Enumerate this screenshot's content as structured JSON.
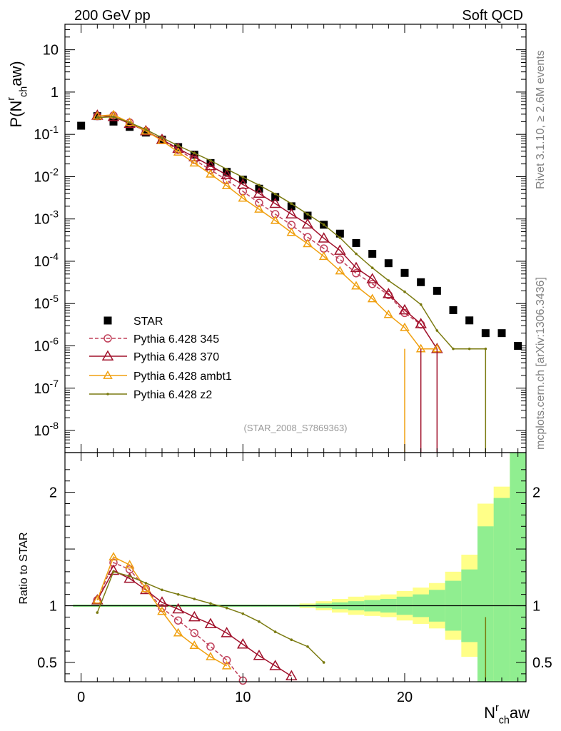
{
  "header": {
    "left": "200 GeV pp",
    "right": "Soft QCD"
  },
  "side_labels": {
    "rivet": "Rivet 3.1.10, ≥ 2.6M events",
    "mcplots": "mcplots.cern.ch [arXiv:1306.3436]"
  },
  "analysis_ref": "(STAR_2008_S7869363)",
  "colors": {
    "STAR": "#000000",
    "p345": "#c0405a",
    "p370": "#a0102a",
    "ambt1": "#f0a010",
    "z2": "#7a7a10",
    "band_inner": "#90ee90",
    "band_outer": "#ffff88"
  },
  "chart_data": [
    {
      "type": "scatter",
      "ylabel": "P(N^r_ch aw)",
      "xlabel": "N^r_ch aw",
      "xlim": [
        -1,
        27.5
      ],
      "ylim": [
        3e-09,
        40
      ],
      "yscale": "log",
      "xticks": [
        "0",
        "10",
        "20"
      ],
      "yticks": [
        "10",
        "1",
        "10^-1",
        "10^-2",
        "10^-3",
        "10^-4",
        "10^-5",
        "10^-6",
        "10^-7",
        "10^-8"
      ],
      "series": [
        {
          "name": "STAR",
          "marker": "filled-square",
          "x": [
            0,
            1,
            2,
            3,
            4,
            5,
            6,
            7,
            8,
            9,
            10,
            11,
            12,
            13,
            14,
            15,
            16,
            17,
            18,
            19,
            20,
            21,
            22,
            23,
            24,
            25,
            26,
            27
          ],
          "y": [
            0.16,
            0.27,
            0.2,
            0.15,
            0.11,
            0.075,
            0.05,
            0.033,
            0.021,
            0.013,
            0.0085,
            0.0052,
            0.0033,
            0.002,
            0.0012,
            0.00073,
            0.00045,
            0.00027,
            0.00015,
            9e-05,
            5.3e-05,
            3.2e-05,
            2e-05,
            7e-06,
            4e-06,
            2e-06,
            2e-06,
            1e-06
          ]
        },
        {
          "name": "Pythia 6.428 345",
          "marker": "open-circle",
          "line": "dashed",
          "x": [
            1,
            2,
            3,
            4,
            5,
            6,
            7,
            8,
            9,
            10,
            11,
            12,
            13,
            14,
            15,
            16,
            17,
            18,
            19,
            20,
            21
          ],
          "y": [
            0.27,
            0.28,
            0.19,
            0.12,
            0.073,
            0.043,
            0.025,
            0.0145,
            0.0083,
            0.0045,
            0.0024,
            0.0013,
            0.00072,
            0.00037,
            0.0002,
            0.00011,
            5.2e-05,
            2.9e-05,
            1.6e-05,
            6e-06,
            3.2e-06
          ]
        },
        {
          "name": "Pythia 6.428 370",
          "marker": "open-triangle",
          "line": "solid",
          "x": [
            1,
            2,
            3,
            4,
            5,
            6,
            7,
            8,
            9,
            10,
            11,
            12,
            13,
            14,
            15,
            16,
            17,
            18,
            19,
            20,
            21,
            22
          ],
          "y": [
            0.28,
            0.26,
            0.18,
            0.12,
            0.075,
            0.046,
            0.029,
            0.018,
            0.011,
            0.0065,
            0.004,
            0.0023,
            0.0013,
            0.00075,
            0.00035,
            0.00018,
            7e-05,
            3.8e-05,
            1.7e-05,
            7e-06,
            3.3e-06,
            8.5e-07
          ]
        },
        {
          "name": "Pythia 6.428 ambt1",
          "marker": "open-triangle",
          "line": "solid",
          "x": [
            1,
            2,
            3,
            4,
            5,
            6,
            7,
            8,
            9,
            10,
            11,
            12,
            13,
            14,
            15,
            16,
            17,
            18,
            19,
            20,
            21,
            22
          ],
          "y": [
            0.27,
            0.29,
            0.19,
            0.12,
            0.071,
            0.038,
            0.021,
            0.0115,
            0.0061,
            0.0031,
            0.0017,
            0.00092,
            0.00048,
            0.00026,
            0.00013,
            5.9e-05,
            2.6e-05,
            1.3e-05,
            5.5e-06,
            2.7e-06,
            8.5e-07,
            8.5e-07
          ]
        },
        {
          "name": "Pythia 6.428 z2",
          "marker": "dot",
          "line": "solid",
          "x": [
            1,
            2,
            3,
            4,
            5,
            6,
            7,
            8,
            9,
            10,
            11,
            12,
            13,
            14,
            15,
            16,
            17,
            18,
            19,
            20,
            21,
            22,
            23,
            24,
            25
          ],
          "y": [
            0.25,
            0.26,
            0.19,
            0.13,
            0.083,
            0.054,
            0.036,
            0.024,
            0.015,
            0.0097,
            0.0063,
            0.0039,
            0.0023,
            0.0013,
            0.00073,
            0.00036,
            0.00015,
            7e-05,
            3.5e-05,
            1.9e-05,
            9.5e-06,
            2.3e-06,
            8.5e-07,
            8.5e-07,
            8.5e-07
          ]
        }
      ]
    },
    {
      "type": "line",
      "ylabel": "Ratio to STAR",
      "xlabel": "N^r_ch aw",
      "xlim": [
        -1,
        27.5
      ],
      "ylim": [
        0.33,
        2.35
      ],
      "yticks": [
        "0.5",
        "1",
        "2"
      ],
      "reference_line": 1,
      "uncertainty_band": {
        "inner_half_width": [
          0.01,
          0.01,
          0.01,
          0.01,
          0.01,
          0.01,
          0.01,
          0.01,
          0.01,
          0.01,
          0.01,
          0.01,
          0.01,
          0.01,
          0.01,
          0.02,
          0.03,
          0.04,
          0.05,
          0.06,
          0.08,
          0.1,
          0.14,
          0.22,
          0.32,
          0.7,
          0.95,
          1.4
        ],
        "outer_half_width": [
          0.01,
          0.01,
          0.01,
          0.01,
          0.01,
          0.01,
          0.01,
          0.01,
          0.01,
          0.01,
          0.01,
          0.01,
          0.01,
          0.01,
          0.02,
          0.04,
          0.06,
          0.08,
          0.09,
          0.1,
          0.13,
          0.16,
          0.2,
          0.3,
          0.45,
          0.9,
          1.05,
          1.6
        ]
      },
      "series": [
        {
          "name": "Pythia 6.428 345",
          "x": [
            1,
            2,
            3,
            4,
            5,
            6,
            7,
            8,
            9,
            10
          ],
          "y": [
            1.05,
            1.38,
            1.32,
            1.15,
            0.98,
            0.87,
            0.76,
            0.64,
            0.52,
            0.34
          ]
        },
        {
          "name": "Pythia 6.428 370",
          "x": [
            1,
            2,
            3,
            4,
            5,
            6,
            7,
            8,
            9,
            10,
            11,
            12,
            13
          ],
          "y": [
            1.05,
            1.31,
            1.24,
            1.14,
            1.03,
            0.97,
            0.9,
            0.84,
            0.76,
            0.66,
            0.56,
            0.47,
            0.38
          ]
        },
        {
          "name": "Pythia 6.428 ambt1",
          "x": [
            1,
            2,
            3,
            4,
            5,
            6,
            7,
            8,
            9
          ],
          "y": [
            1.05,
            1.43,
            1.36,
            1.15,
            0.95,
            0.76,
            0.65,
            0.55,
            0.47
          ]
        },
        {
          "name": "Pythia 6.428 z2",
          "x": [
            1,
            2,
            3,
            4,
            5,
            6,
            7,
            8,
            9,
            10,
            11,
            12,
            13,
            14,
            15
          ],
          "y": [
            0.94,
            1.3,
            1.26,
            1.2,
            1.14,
            1.1,
            1.06,
            1.02,
            0.98,
            0.93,
            0.86,
            0.77,
            0.7,
            0.64,
            0.5
          ]
        }
      ]
    }
  ]
}
